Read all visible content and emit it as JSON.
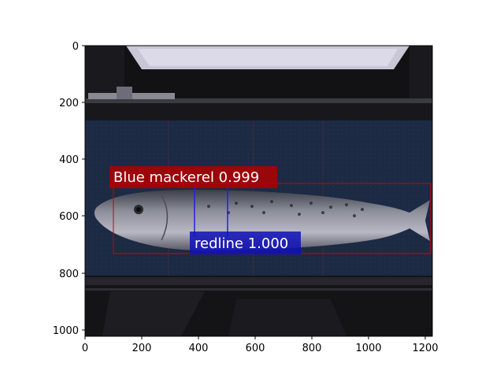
{
  "axes": {
    "x_ticks": [
      "0",
      "200",
      "400",
      "600",
      "800",
      "1000",
      "1200"
    ],
    "y_ticks": [
      "0",
      "200",
      "400",
      "600",
      "800",
      "1000"
    ]
  },
  "detections": [
    {
      "label": "Blue mackerel 0.999",
      "color": "#b00000"
    },
    {
      "label": "redline 1.000",
      "color": "#1010b8"
    }
  ],
  "colors": {
    "belt": "#1c2a44",
    "machine_dark": "#121214",
    "fish_body": "#6e6e78"
  }
}
